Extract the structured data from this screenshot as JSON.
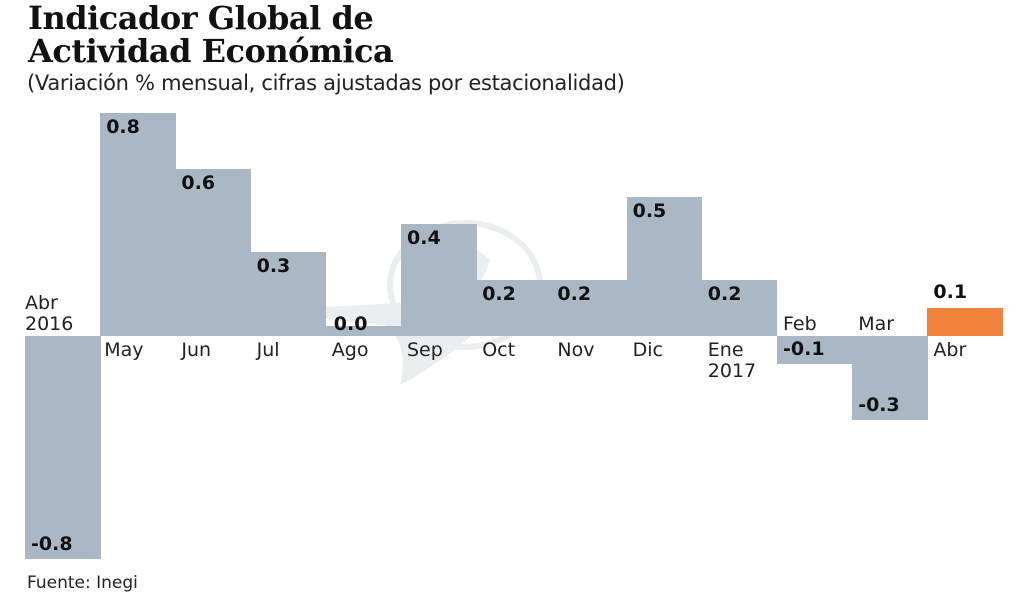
{
  "header": {
    "title_line1": "Indicador Global de",
    "title_line2": "Actividad Económica",
    "subtitle": "(Variación % mensual, cifras ajustadas por estacionalidad)"
  },
  "footer": {
    "source": "Fuente: Inegi"
  },
  "colors": {
    "bar": "#a9b8c4",
    "highlight": "#f0843f",
    "text": "#1a1a1a"
  },
  "chart_data": {
    "type": "bar",
    "title": "Indicador Global de Actividad Económica",
    "subtitle": "(Variación % mensual, cifras ajustadas por estacionalidad)",
    "xlabel": "",
    "ylabel": "Variación % mensual",
    "categories": [
      "Abr 2016",
      "May",
      "Jun",
      "Jul",
      "Ago",
      "Sep",
      "Oct",
      "Nov",
      "Dic",
      "Ene 2017",
      "Feb",
      "Mar",
      "Abr"
    ],
    "values": [
      -0.8,
      0.8,
      0.6,
      0.3,
      0.0,
      0.4,
      0.2,
      0.2,
      0.5,
      0.2,
      -0.1,
      -0.3,
      0.1
    ],
    "value_labels": [
      "-0.8",
      "0.8",
      "0.6",
      "0.3",
      "0.0",
      "0.4",
      "0.2",
      "0.2",
      "0.5",
      "0.2",
      "-0.1",
      "-0.3",
      "0.1"
    ],
    "highlight_index": 12,
    "ylim": [
      -0.8,
      0.8
    ],
    "grid": false,
    "legend": "none",
    "source": "Fuente: Inegi"
  },
  "bars": [
    {
      "label1": "Abr",
      "label2": "2016",
      "value": -0.8,
      "text": "-0.8"
    },
    {
      "label1": "May",
      "label2": "",
      "value": 0.8,
      "text": "0.8"
    },
    {
      "label1": "Jun",
      "label2": "",
      "value": 0.6,
      "text": "0.6"
    },
    {
      "label1": "Jul",
      "label2": "",
      "value": 0.3,
      "text": "0.3"
    },
    {
      "label1": "Ago",
      "label2": "",
      "value": 0.0,
      "text": "0.0"
    },
    {
      "label1": "Sep",
      "label2": "",
      "value": 0.4,
      "text": "0.4"
    },
    {
      "label1": "Oct",
      "label2": "",
      "value": 0.2,
      "text": "0.2"
    },
    {
      "label1": "Nov",
      "label2": "",
      "value": 0.2,
      "text": "0.2"
    },
    {
      "label1": "Dic",
      "label2": "",
      "value": 0.5,
      "text": "0.5"
    },
    {
      "label1": "Ene",
      "label2": "2017",
      "value": 0.2,
      "text": "0.2"
    },
    {
      "label1": "Feb",
      "label2": "",
      "value": -0.1,
      "text": "-0.1"
    },
    {
      "label1": "Mar",
      "label2": "",
      "value": -0.3,
      "text": "-0.3"
    },
    {
      "label1": "Abr",
      "label2": "",
      "value": 0.1,
      "text": "0.1"
    }
  ]
}
